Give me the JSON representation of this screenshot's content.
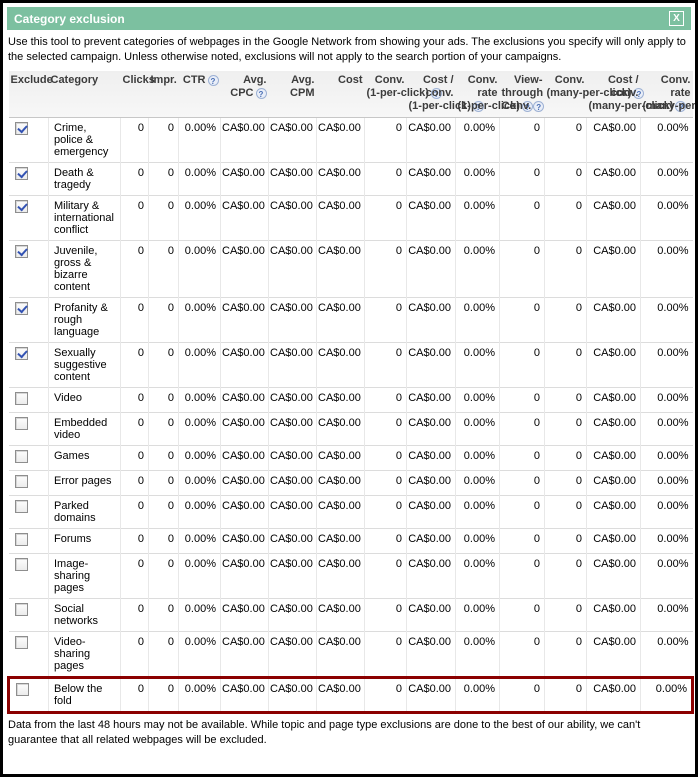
{
  "dialog": {
    "title": "Category exclusion",
    "description": "Use this tool to prevent categories of webpages in the Google Network from showing your ads. The exclusions you specify will only apply to the selected campaign. Unless otherwise noted, exclusions will not apply to the search portion of your campaigns.",
    "footer": "Data from the last 48 hours may not be available. While topic and page type exclusions are done to the best of our ability, we can't guarantee that all related webpages will be excluded."
  },
  "icons": {
    "close": "X",
    "help": "?"
  },
  "colors": {
    "titlebar_green": "#7cc0a0",
    "highlight_red": "#8b0000",
    "header_bg": "#efefef",
    "help_icon_blue": "#4a6fb5",
    "checkbox_check_blue": "#3353b3"
  },
  "table": {
    "columns": [
      {
        "label": "Exclude",
        "help": false
      },
      {
        "label": "Category",
        "help": false
      },
      {
        "label": "Clicks",
        "help": false
      },
      {
        "label": "Impr.",
        "help": false
      },
      {
        "label": "CTR",
        "help": true
      },
      {
        "label": "Avg. CPC",
        "help": true
      },
      {
        "label": "Avg. CPM",
        "help": false
      },
      {
        "label": "Cost",
        "help": false
      },
      {
        "label": "Conv. (1-per-click)",
        "help": true
      },
      {
        "label": "Cost / conv. (1-per-click)",
        "help": true
      },
      {
        "label": "Conv. rate (1-per-click)",
        "help": true
      },
      {
        "label": "View-through Conv.",
        "help": true
      },
      {
        "label": "Conv. (many-per-click)",
        "help": true
      },
      {
        "label": "Cost / conv. (many-per-click)",
        "help": true
      },
      {
        "label": "Conv. rate (many-per-click)",
        "help": true
      }
    ],
    "rows": [
      {
        "checked": true,
        "highlighted": false,
        "category": "Crime, police & emergency",
        "values": [
          "0",
          "0",
          "0.00%",
          "CA$0.00",
          "CA$0.00",
          "CA$0.00",
          "0",
          "CA$0.00",
          "0.00%",
          "0",
          "0",
          "CA$0.00",
          "0.00%"
        ]
      },
      {
        "checked": true,
        "highlighted": false,
        "category": "Death & tragedy",
        "values": [
          "0",
          "0",
          "0.00%",
          "CA$0.00",
          "CA$0.00",
          "CA$0.00",
          "0",
          "CA$0.00",
          "0.00%",
          "0",
          "0",
          "CA$0.00",
          "0.00%"
        ]
      },
      {
        "checked": true,
        "highlighted": false,
        "category": "Military & international conflict",
        "values": [
          "0",
          "0",
          "0.00%",
          "CA$0.00",
          "CA$0.00",
          "CA$0.00",
          "0",
          "CA$0.00",
          "0.00%",
          "0",
          "0",
          "CA$0.00",
          "0.00%"
        ]
      },
      {
        "checked": true,
        "highlighted": false,
        "category": "Juvenile, gross & bizarre content",
        "values": [
          "0",
          "0",
          "0.00%",
          "CA$0.00",
          "CA$0.00",
          "CA$0.00",
          "0",
          "CA$0.00",
          "0.00%",
          "0",
          "0",
          "CA$0.00",
          "0.00%"
        ]
      },
      {
        "checked": true,
        "highlighted": false,
        "category": "Profanity & rough language",
        "values": [
          "0",
          "0",
          "0.00%",
          "CA$0.00",
          "CA$0.00",
          "CA$0.00",
          "0",
          "CA$0.00",
          "0.00%",
          "0",
          "0",
          "CA$0.00",
          "0.00%"
        ]
      },
      {
        "checked": true,
        "highlighted": false,
        "category": "Sexually suggestive content",
        "values": [
          "0",
          "0",
          "0.00%",
          "CA$0.00",
          "CA$0.00",
          "CA$0.00",
          "0",
          "CA$0.00",
          "0.00%",
          "0",
          "0",
          "CA$0.00",
          "0.00%"
        ]
      },
      {
        "checked": false,
        "highlighted": false,
        "category": "Video",
        "values": [
          "0",
          "0",
          "0.00%",
          "CA$0.00",
          "CA$0.00",
          "CA$0.00",
          "0",
          "CA$0.00",
          "0.00%",
          "0",
          "0",
          "CA$0.00",
          "0.00%"
        ]
      },
      {
        "checked": false,
        "highlighted": false,
        "category": "Embedded video",
        "values": [
          "0",
          "0",
          "0.00%",
          "CA$0.00",
          "CA$0.00",
          "CA$0.00",
          "0",
          "CA$0.00",
          "0.00%",
          "0",
          "0",
          "CA$0.00",
          "0.00%"
        ]
      },
      {
        "checked": false,
        "highlighted": false,
        "category": "Games",
        "values": [
          "0",
          "0",
          "0.00%",
          "CA$0.00",
          "CA$0.00",
          "CA$0.00",
          "0",
          "CA$0.00",
          "0.00%",
          "0",
          "0",
          "CA$0.00",
          "0.00%"
        ]
      },
      {
        "checked": false,
        "highlighted": false,
        "category": "Error pages",
        "values": [
          "0",
          "0",
          "0.00%",
          "CA$0.00",
          "CA$0.00",
          "CA$0.00",
          "0",
          "CA$0.00",
          "0.00%",
          "0",
          "0",
          "CA$0.00",
          "0.00%"
        ]
      },
      {
        "checked": false,
        "highlighted": false,
        "category": "Parked domains",
        "values": [
          "0",
          "0",
          "0.00%",
          "CA$0.00",
          "CA$0.00",
          "CA$0.00",
          "0",
          "CA$0.00",
          "0.00%",
          "0",
          "0",
          "CA$0.00",
          "0.00%"
        ]
      },
      {
        "checked": false,
        "highlighted": false,
        "category": "Forums",
        "values": [
          "0",
          "0",
          "0.00%",
          "CA$0.00",
          "CA$0.00",
          "CA$0.00",
          "0",
          "CA$0.00",
          "0.00%",
          "0",
          "0",
          "CA$0.00",
          "0.00%"
        ]
      },
      {
        "checked": false,
        "highlighted": false,
        "category": "Image-sharing pages",
        "values": [
          "0",
          "0",
          "0.00%",
          "CA$0.00",
          "CA$0.00",
          "CA$0.00",
          "0",
          "CA$0.00",
          "0.00%",
          "0",
          "0",
          "CA$0.00",
          "0.00%"
        ]
      },
      {
        "checked": false,
        "highlighted": false,
        "category": "Social networks",
        "values": [
          "0",
          "0",
          "0.00%",
          "CA$0.00",
          "CA$0.00",
          "CA$0.00",
          "0",
          "CA$0.00",
          "0.00%",
          "0",
          "0",
          "CA$0.00",
          "0.00%"
        ]
      },
      {
        "checked": false,
        "highlighted": false,
        "category": "Video-sharing pages",
        "values": [
          "0",
          "0",
          "0.00%",
          "CA$0.00",
          "CA$0.00",
          "CA$0.00",
          "0",
          "CA$0.00",
          "0.00%",
          "0",
          "0",
          "CA$0.00",
          "0.00%"
        ]
      },
      {
        "checked": false,
        "highlighted": true,
        "category": "Below the fold",
        "values": [
          "0",
          "0",
          "0.00%",
          "CA$0.00",
          "CA$0.00",
          "CA$0.00",
          "0",
          "CA$0.00",
          "0.00%",
          "0",
          "0",
          "CA$0.00",
          "0.00%"
        ]
      }
    ]
  }
}
